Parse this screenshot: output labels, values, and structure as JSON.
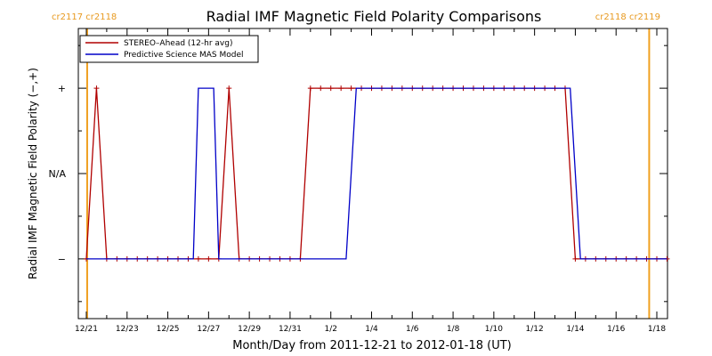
{
  "chart_data": {
    "type": "line",
    "title": "Radial IMF Magnetic Field Polarity Comparisons",
    "xlabel": "Month/Day from 2011-12-21 to 2012-01-18 (UT)",
    "ylabel": "Radial IMF Magnetic Field Polarity (−,+)",
    "xlim": [
      "2011-12-21",
      "2012-01-18"
    ],
    "ylim": [
      -1.7,
      1.7
    ],
    "y_ticks": [
      {
        "value": 1,
        "label": "+"
      },
      {
        "value": 0,
        "label": "N/A"
      },
      {
        "value": -1,
        "label": "−"
      }
    ],
    "x_ticks": [
      {
        "date": "2011-12-21",
        "label": "12/21"
      },
      {
        "date": "2011-12-23",
        "label": "12/23"
      },
      {
        "date": "2011-12-25",
        "label": "12/25"
      },
      {
        "date": "2011-12-27",
        "label": "12/27"
      },
      {
        "date": "2011-12-29",
        "label": "12/29"
      },
      {
        "date": "2011-12-31",
        "label": "12/31"
      },
      {
        "date": "2012-01-02",
        "label": "1/2"
      },
      {
        "date": "2012-01-04",
        "label": "1/4"
      },
      {
        "date": "2012-01-06",
        "label": "1/6"
      },
      {
        "date": "2012-01-08",
        "label": "1/8"
      },
      {
        "date": "2012-01-10",
        "label": "1/10"
      },
      {
        "date": "2012-01-12",
        "label": "1/12"
      },
      {
        "date": "2012-01-14",
        "label": "1/14"
      },
      {
        "date": "2012-01-16",
        "label": "1/16"
      },
      {
        "date": "2012-01-18",
        "label": "1/18"
      }
    ],
    "carrington_markers": [
      {
        "date": "2011-12-21 01:00",
        "label": "cr2117 cr2118",
        "side": "left"
      },
      {
        "date": "2012-01-17 15:00",
        "label": "cr2118 cr2119",
        "side": "right"
      }
    ],
    "legend": {
      "position": "top-left"
    },
    "colors": {
      "stereo": "#b00000",
      "mas": "#0000c8",
      "marker": "#f0a020",
      "text": "#000000",
      "cr_text": "#e89a20"
    },
    "series": [
      {
        "name": "STEREO–Ahead (12-hr avg)",
        "markers": true,
        "points": [
          [
            "2011-12-21 00:00",
            -1
          ],
          [
            "2011-12-21 12:00",
            1
          ],
          [
            "2011-12-22 00:00",
            -1
          ],
          [
            "2011-12-22 12:00",
            -1
          ],
          [
            "2011-12-23 00:00",
            -1
          ],
          [
            "2011-12-23 12:00",
            -1
          ],
          [
            "2011-12-24 00:00",
            -1
          ],
          [
            "2011-12-24 12:00",
            -1
          ],
          [
            "2011-12-25 00:00",
            -1
          ],
          [
            "2011-12-25 12:00",
            -1
          ],
          [
            "2011-12-26 00:00",
            -1
          ],
          [
            "2011-12-26 12:00",
            -1
          ],
          [
            "2011-12-27 00:00",
            -1
          ],
          [
            "2011-12-27 12:00",
            -1
          ],
          [
            "2011-12-28 00:00",
            1
          ],
          [
            "2011-12-28 12:00",
            -1
          ],
          [
            "2011-12-29 00:00",
            -1
          ],
          [
            "2011-12-29 12:00",
            -1
          ],
          [
            "2011-12-30 00:00",
            -1
          ],
          [
            "2011-12-30 12:00",
            -1
          ],
          [
            "2011-12-31 00:00",
            -1
          ],
          [
            "2011-12-31 12:00",
            -1
          ],
          [
            "2012-01-01 00:00",
            1
          ],
          [
            "2012-01-01 12:00",
            1
          ],
          [
            "2012-01-02 00:00",
            1
          ],
          [
            "2012-01-02 12:00",
            1
          ],
          [
            "2012-01-03 00:00",
            1
          ],
          [
            "2012-01-03 12:00",
            1
          ],
          [
            "2012-01-04 00:00",
            1
          ],
          [
            "2012-01-04 12:00",
            1
          ],
          [
            "2012-01-05 00:00",
            1
          ],
          [
            "2012-01-05 12:00",
            1
          ],
          [
            "2012-01-06 00:00",
            1
          ],
          [
            "2012-01-06 12:00",
            1
          ],
          [
            "2012-01-07 00:00",
            1
          ],
          [
            "2012-01-07 12:00",
            1
          ],
          [
            "2012-01-08 00:00",
            1
          ],
          [
            "2012-01-08 12:00",
            1
          ],
          [
            "2012-01-09 00:00",
            1
          ],
          [
            "2012-01-09 12:00",
            1
          ],
          [
            "2012-01-10 00:00",
            1
          ],
          [
            "2012-01-10 12:00",
            1
          ],
          [
            "2012-01-11 00:00",
            1
          ],
          [
            "2012-01-11 12:00",
            1
          ],
          [
            "2012-01-12 00:00",
            1
          ],
          [
            "2012-01-12 12:00",
            1
          ],
          [
            "2012-01-13 00:00",
            1
          ],
          [
            "2012-01-13 12:00",
            1
          ],
          [
            "2012-01-14 00:00",
            -1
          ],
          [
            "2012-01-14 12:00",
            -1
          ],
          [
            "2012-01-15 00:00",
            -1
          ],
          [
            "2012-01-15 12:00",
            -1
          ],
          [
            "2012-01-16 00:00",
            -1
          ],
          [
            "2012-01-16 12:00",
            -1
          ],
          [
            "2012-01-17 00:00",
            -1
          ],
          [
            "2012-01-17 12:00",
            -1
          ],
          [
            "2012-01-18 00:00",
            -1
          ],
          [
            "2012-01-18 12:00",
            -1
          ]
        ]
      },
      {
        "name": "Predictive Science MAS Model",
        "markers": false,
        "points": [
          [
            "2011-12-21 00:00",
            -1
          ],
          [
            "2011-12-26 06:00",
            -1
          ],
          [
            "2011-12-26 12:00",
            1
          ],
          [
            "2011-12-27 06:00",
            1
          ],
          [
            "2011-12-27 12:00",
            -1
          ],
          [
            "2012-01-02 18:00",
            -1
          ],
          [
            "2012-01-03 06:00",
            1
          ],
          [
            "2012-01-13 18:00",
            1
          ],
          [
            "2012-01-14 06:00",
            -1
          ],
          [
            "2012-01-18 12:00",
            -1
          ]
        ]
      }
    ]
  }
}
